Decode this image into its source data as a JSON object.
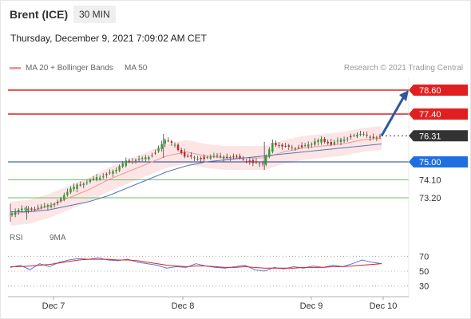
{
  "header": {
    "symbol": "Brent (ICE)",
    "timeframe": "30 MIN"
  },
  "timestamp": "Thursday, December 9, 2021 7:09:02 AM CET",
  "legend": {
    "bb_label": "MA 20 + Bollinger Bands",
    "ma50_label": "MA 50",
    "copyright": "Research © 2021 Trading Central"
  },
  "rsi_legend": {
    "rsi_label": "RSI",
    "ma_label": "9MA"
  },
  "colors": {
    "up": "#2e9e2e",
    "down": "#cc2222",
    "bb": "#f19999",
    "bb_fill": "#fde5e5",
    "ma50": "#5577bb",
    "resistance": "#e02020",
    "pivot": "#1a3f8f",
    "support": "#6cbf6c",
    "arrow": "#2c5aa0",
    "last_price": "#333333"
  },
  "chart_data": {
    "type": "candlestick",
    "ylim": [
      72.0,
      79.2
    ],
    "levels": [
      {
        "value": 78.6,
        "label": "78.60",
        "kind": "resistance"
      },
      {
        "value": 77.4,
        "label": "77.40",
        "kind": "resistance"
      },
      {
        "value": 76.31,
        "label": "76.31",
        "kind": "last"
      },
      {
        "value": 75.0,
        "label": "75.00",
        "kind": "pivot"
      },
      {
        "value": 74.1,
        "label": "74.10",
        "kind": "support"
      },
      {
        "value": 73.2,
        "label": "73.20",
        "kind": "support"
      }
    ],
    "x_labels": [
      "Dec 7",
      "Dec 8",
      "Dec 9",
      "Dec 10"
    ],
    "price_path": [
      [
        0,
        72.3
      ],
      [
        3,
        72.6
      ],
      [
        6,
        72.6
      ],
      [
        9,
        72.7
      ],
      [
        12,
        72.8
      ],
      [
        15,
        73.0
      ],
      [
        18,
        73.5
      ],
      [
        21,
        73.8
      ],
      [
        24,
        74.0
      ],
      [
        27,
        74.2
      ],
      [
        30,
        74.4
      ],
      [
        33,
        74.6
      ],
      [
        36,
        75.0
      ],
      [
        39,
        75.1
      ],
      [
        42,
        75.2
      ],
      [
        45,
        75.5
      ],
      [
        48,
        76.1
      ],
      [
        51,
        75.8
      ],
      [
        54,
        75.3
      ],
      [
        57,
        75.2
      ],
      [
        60,
        75.2
      ],
      [
        63,
        75.3
      ],
      [
        66,
        75.2
      ],
      [
        69,
        75.3
      ],
      [
        72,
        75.1
      ],
      [
        75,
        75.0
      ],
      [
        78,
        74.9
      ],
      [
        81,
        75.9
      ],
      [
        84,
        75.8
      ],
      [
        87,
        75.7
      ],
      [
        90,
        75.8
      ],
      [
        93,
        75.9
      ],
      [
        96,
        76.1
      ],
      [
        99,
        75.9
      ],
      [
        102,
        76.1
      ],
      [
        105,
        76.3
      ],
      [
        108,
        76.4
      ],
      [
        111,
        76.2
      ],
      [
        114,
        76.3
      ]
    ],
    "ma20": [
      [
        0,
        72.4
      ],
      [
        6,
        72.5
      ],
      [
        12,
        72.8
      ],
      [
        18,
        73.2
      ],
      [
        24,
        73.6
      ],
      [
        30,
        74.1
      ],
      [
        36,
        74.5
      ],
      [
        42,
        74.9
      ],
      [
        48,
        75.3
      ],
      [
        54,
        75.5
      ],
      [
        60,
        75.3
      ],
      [
        66,
        75.2
      ],
      [
        72,
        75.2
      ],
      [
        78,
        75.2
      ],
      [
        84,
        75.5
      ],
      [
        90,
        75.7
      ],
      [
        96,
        75.8
      ],
      [
        102,
        75.9
      ],
      [
        108,
        76.1
      ],
      [
        114,
        76.2
      ]
    ],
    "ma50": [
      [
        0,
        72.5
      ],
      [
        6,
        72.5
      ],
      [
        12,
        72.6
      ],
      [
        18,
        72.8
      ],
      [
        24,
        73.0
      ],
      [
        30,
        73.3
      ],
      [
        36,
        73.7
      ],
      [
        42,
        74.1
      ],
      [
        48,
        74.5
      ],
      [
        54,
        74.8
      ],
      [
        60,
        75.0
      ],
      [
        66,
        75.1
      ],
      [
        72,
        75.2
      ],
      [
        78,
        75.3
      ],
      [
        84,
        75.4
      ],
      [
        90,
        75.5
      ],
      [
        96,
        75.6
      ],
      [
        102,
        75.7
      ],
      [
        108,
        75.8
      ],
      [
        114,
        75.9
      ]
    ],
    "bb_width": 0.6,
    "forecast_arrow": {
      "from": [
        114,
        76.31
      ],
      "to": [
        123,
        78.6
      ]
    },
    "rsi": {
      "ylim": [
        20,
        80
      ],
      "levels": [
        70,
        50,
        30
      ],
      "rsi_values": [
        55,
        58,
        52,
        60,
        56,
        62,
        65,
        67,
        66,
        68,
        65,
        64,
        66,
        62,
        60,
        58,
        54,
        56,
        55,
        60,
        57,
        55,
        54,
        56,
        58,
        52,
        50,
        55,
        53,
        56,
        54,
        57,
        55,
        58,
        56,
        60,
        65,
        62,
        60
      ],
      "ma_values": [
        56,
        56,
        57,
        58,
        59,
        61,
        63,
        65,
        66,
        66,
        66,
        65,
        65,
        64,
        62,
        60,
        58,
        57,
        56,
        57,
        57,
        56,
        55,
        55,
        56,
        55,
        54,
        54,
        54,
        54,
        55,
        55,
        55,
        56,
        56,
        57,
        58,
        59,
        60
      ]
    }
  }
}
